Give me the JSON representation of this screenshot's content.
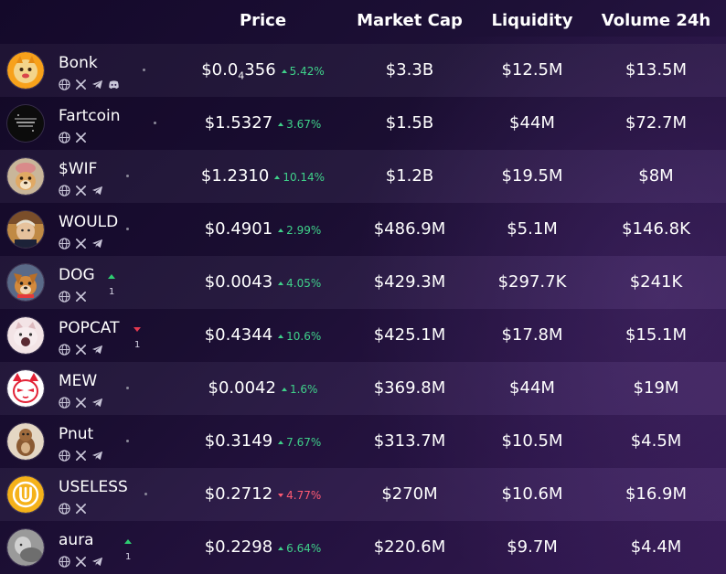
{
  "header": {
    "price": "Price",
    "market_cap": "Market Cap",
    "liquidity": "Liquidity",
    "volume": "Volume 24h"
  },
  "colors": {
    "up": "#3fd18a",
    "down": "#ff5a72"
  },
  "tokens": [
    {
      "name": "Bonk",
      "price_main": "$0.0",
      "price_sub": "4",
      "price_tail": "356",
      "change": "5.42%",
      "dir": "up",
      "market_cap": "$3.3B",
      "liquidity": "$12.5M",
      "volume": "$13.5M",
      "socials": [
        "globe-icon",
        "x-icon",
        "telegram-icon",
        "discord-icon"
      ],
      "rank_change": null,
      "avatar": "bonk"
    },
    {
      "name": "Fartcoin",
      "price_main": "$1.5327",
      "price_sub": "",
      "price_tail": "",
      "change": "3.67%",
      "dir": "up",
      "market_cap": "$1.5B",
      "liquidity": "$44M",
      "volume": "$72.7M",
      "socials": [
        "globe-icon",
        "x-icon"
      ],
      "rank_change": null,
      "avatar": "fartcoin"
    },
    {
      "name": "$WIF",
      "price_main": "$1.2310",
      "price_sub": "",
      "price_tail": "",
      "change": "10.14%",
      "dir": "up",
      "market_cap": "$1.2B",
      "liquidity": "$19.5M",
      "volume": "$8M",
      "socials": [
        "globe-icon",
        "x-icon",
        "telegram-icon"
      ],
      "rank_change": null,
      "avatar": "wif"
    },
    {
      "name": "WOULD",
      "price_main": "$0.4901",
      "price_sub": "",
      "price_tail": "",
      "change": "2.99%",
      "dir": "up",
      "market_cap": "$486.9M",
      "liquidity": "$5.1M",
      "volume": "$146.8K",
      "socials": [
        "globe-icon",
        "x-icon",
        "telegram-icon"
      ],
      "rank_change": null,
      "avatar": "would"
    },
    {
      "name": "DOG",
      "price_main": "$0.0043",
      "price_sub": "",
      "price_tail": "",
      "change": "4.05%",
      "dir": "up",
      "market_cap": "$429.3M",
      "liquidity": "$297.7K",
      "volume": "$241K",
      "socials": [
        "globe-icon",
        "x-icon"
      ],
      "rank_change": {
        "dir": "up",
        "value": "1"
      },
      "avatar": "dog"
    },
    {
      "name": "POPCAT",
      "price_main": "$0.4344",
      "price_sub": "",
      "price_tail": "",
      "change": "10.6%",
      "dir": "up",
      "market_cap": "$425.1M",
      "liquidity": "$17.8M",
      "volume": "$15.1M",
      "socials": [
        "globe-icon",
        "x-icon",
        "telegram-icon"
      ],
      "rank_change": {
        "dir": "down",
        "value": "1"
      },
      "avatar": "popcat"
    },
    {
      "name": "MEW",
      "price_main": "$0.0042",
      "price_sub": "",
      "price_tail": "",
      "change": "1.6%",
      "dir": "up",
      "market_cap": "$369.8M",
      "liquidity": "$44M",
      "volume": "$19M",
      "socials": [
        "globe-icon",
        "x-icon",
        "telegram-icon"
      ],
      "rank_change": null,
      "avatar": "mew"
    },
    {
      "name": "Pnut",
      "price_main": "$0.3149",
      "price_sub": "",
      "price_tail": "",
      "change": "7.67%",
      "dir": "up",
      "market_cap": "$313.7M",
      "liquidity": "$10.5M",
      "volume": "$4.5M",
      "socials": [
        "globe-icon",
        "x-icon",
        "telegram-icon"
      ],
      "rank_change": null,
      "avatar": "pnut"
    },
    {
      "name": "USELESS",
      "price_main": "$0.2712",
      "price_sub": "",
      "price_tail": "",
      "change": "4.77%",
      "dir": "down",
      "market_cap": "$270M",
      "liquidity": "$10.6M",
      "volume": "$16.9M",
      "socials": [
        "globe-icon",
        "x-icon"
      ],
      "rank_change": null,
      "avatar": "useless"
    },
    {
      "name": "aura",
      "price_main": "$0.2298",
      "price_sub": "",
      "price_tail": "",
      "change": "6.64%",
      "dir": "up",
      "market_cap": "$220.6M",
      "liquidity": "$9.7M",
      "volume": "$4.4M",
      "socials": [
        "globe-icon",
        "x-icon",
        "telegram-icon"
      ],
      "rank_change": {
        "dir": "up",
        "value": "1"
      },
      "avatar": "aura"
    }
  ]
}
